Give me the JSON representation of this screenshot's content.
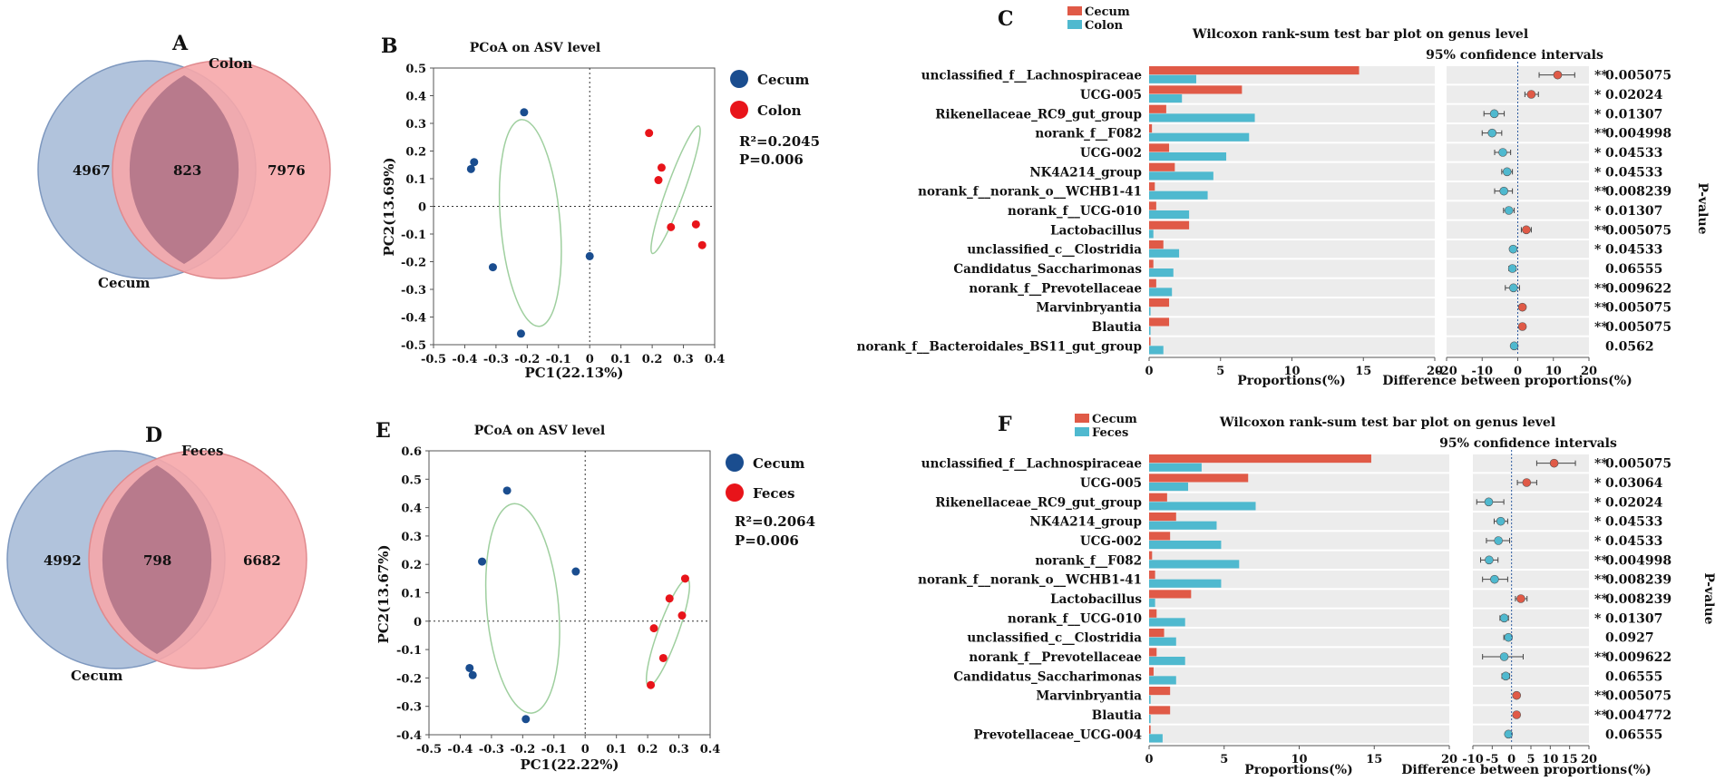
{
  "colors": {
    "cecum": "#e05a47",
    "colon": "#4fb9cf",
    "feces": "#4fb9cf",
    "dot_blue": "#1a4d8f",
    "dot_red": "#e8141a",
    "venn_left": "#a3b8d6",
    "venn_right": "#f6a7aa",
    "venn_overlap": "#b87a8c",
    "ellipse": "#9fcf9f",
    "sig": "#e8141a"
  },
  "panels": {
    "A": {
      "letter": "A",
      "left_label": "Cecum",
      "right_label": "Colon",
      "left_only": "4967",
      "overlap": "823",
      "right_only": "7976"
    },
    "D": {
      "letter": "D",
      "left_label": "Cecum",
      "right_label": "Feces",
      "left_only": "4992",
      "overlap": "798",
      "right_only": "6682"
    },
    "B": {
      "letter": "B",
      "title": "PCoA on ASV level",
      "xlabel": "PC1(22.13%)",
      "ylabel": "PC2(13.69%)",
      "xticks": [
        "-0.5",
        "-0.4",
        "-0.3",
        "-0.2",
        "-0.1",
        "0",
        "0.1",
        "0.2",
        "0.3",
        "0.4"
      ],
      "yticks": [
        "0.5",
        "0.4",
        "0.3",
        "0.2",
        "0.1",
        "0",
        "-0.1",
        "-0.2",
        "-0.3",
        "-0.4",
        "-0.5"
      ],
      "legend": [
        "Cecum",
        "Colon"
      ],
      "r2": "R²=0.2045",
      "p": "P=0.006"
    },
    "E": {
      "letter": "E",
      "title": "PCoA on ASV level",
      "xlabel": "PC1(22.22%)",
      "ylabel": "PC2(13.67%)",
      "xticks": [
        "-0.5",
        "-0.4",
        "-0.3",
        "-0.2",
        "-0.1",
        "0",
        "0.1",
        "0.2",
        "0.3",
        "0.4"
      ],
      "yticks": [
        "0.6",
        "0.5",
        "0.4",
        "0.3",
        "0.2",
        "0.1",
        "0",
        "-0.1",
        "-0.2",
        "-0.3",
        "-0.4"
      ],
      "legend": [
        "Cecum",
        "Feces"
      ],
      "r2": "R²=0.2064",
      "p": "P=0.006"
    },
    "C": {
      "letter": "C",
      "title": "Wilcoxon rank-sum test bar plot on genus level",
      "ci_label": "95% confidence intervals",
      "legend": [
        "Cecum",
        "Colon"
      ],
      "xlabel_left": "Proportions(%)",
      "xlabel_right": "Difference between proportions(%)",
      "pvalue_label": "P-value",
      "xticks_left": [
        "0",
        "5",
        "10",
        "15",
        "20"
      ],
      "xticks_right": [
        "-20",
        "-10",
        "0",
        "10",
        "20"
      ]
    },
    "F": {
      "letter": "F",
      "title": "Wilcoxon rank-sum test bar plot on genus level",
      "ci_label": "95% confidence intervals",
      "legend": [
        "Cecum",
        "Feces"
      ],
      "xlabel_left": "Proportions(%)",
      "xlabel_right": "Difference between proportions(%)",
      "pvalue_label": "P-value",
      "xticks_left": [
        "0",
        "5",
        "10",
        "15",
        "20"
      ],
      "xticks_right": [
        "-10",
        "-5",
        "0",
        "5",
        "10",
        "15",
        "20"
      ]
    }
  },
  "chart_data": [
    {
      "id": "B",
      "type": "scatter",
      "xlim": [
        -0.5,
        0.4
      ],
      "ylim": [
        -0.5,
        0.5
      ],
      "series": [
        {
          "name": "Cecum",
          "points": [
            [
              -0.21,
              0.34
            ],
            [
              -0.37,
              0.16
            ],
            [
              -0.38,
              0.135
            ],
            [
              -0.31,
              -0.22
            ],
            [
              -0.22,
              -0.46
            ],
            [
              0.0,
              -0.18
            ]
          ]
        },
        {
          "name": "Colon",
          "points": [
            [
              0.19,
              0.265
            ],
            [
              0.23,
              0.14
            ],
            [
              0.22,
              0.095
            ],
            [
              0.26,
              -0.075
            ],
            [
              0.34,
              -0.065
            ],
            [
              0.36,
              -0.14
            ]
          ]
        }
      ],
      "ellipses": [
        {
          "cx": -0.19,
          "cy": -0.06,
          "rx": 0.095,
          "ry": 0.375,
          "angle": -5
        },
        {
          "cx": 0.275,
          "cy": 0.06,
          "rx": 0.028,
          "ry": 0.245,
          "angle": 20
        }
      ]
    },
    {
      "id": "E",
      "type": "scatter",
      "xlim": [
        -0.5,
        0.4
      ],
      "ylim": [
        -0.4,
        0.6
      ],
      "series": [
        {
          "name": "Cecum",
          "points": [
            [
              -0.25,
              0.46
            ],
            [
              -0.33,
              0.21
            ],
            [
              -0.03,
              0.175
            ],
            [
              -0.37,
              -0.165
            ],
            [
              -0.36,
              -0.19
            ],
            [
              -0.19,
              -0.345
            ]
          ]
        },
        {
          "name": "Feces",
          "points": [
            [
              0.32,
              0.15
            ],
            [
              0.27,
              0.08
            ],
            [
              0.31,
              0.02
            ],
            [
              0.22,
              -0.025
            ],
            [
              0.25,
              -0.13
            ],
            [
              0.21,
              -0.225
            ]
          ]
        }
      ],
      "ellipses": [
        {
          "cx": -0.2,
          "cy": 0.045,
          "rx": 0.115,
          "ry": 0.37,
          "angle": -5
        },
        {
          "cx": 0.265,
          "cy": -0.04,
          "rx": 0.032,
          "ry": 0.2,
          "angle": 20
        }
      ]
    },
    {
      "id": "C",
      "type": "bar",
      "xlim_left": [
        0,
        20
      ],
      "xlim_right": [
        -20,
        20
      ],
      "categories": [
        "unclassified_f__Lachnospiraceae",
        "UCG-005",
        "Rikenellaceae_RC9_gut_group",
        "norank_f__F082",
        "UCG-002",
        "NK4A214_group",
        "norank_f__norank_o__WCHB1-41",
        "norank_f__UCG-010",
        "Lactobacillus",
        "unclassified_c__Clostridia",
        "Candidatus_Saccharimonas",
        "norank_f__Prevotellaceae",
        "Marvinbryantia",
        "Blautia",
        "norank_f__Bacteroidales_BS11_gut_group"
      ],
      "series": [
        {
          "name": "Cecum",
          "values": [
            14.7,
            6.5,
            1.2,
            0.2,
            1.4,
            1.8,
            0.4,
            0.5,
            2.8,
            1.0,
            0.3,
            0.5,
            1.4,
            1.4,
            0.1
          ]
        },
        {
          "name": "Colon",
          "values": [
            3.3,
            2.3,
            7.4,
            7.0,
            5.4,
            4.5,
            4.1,
            2.8,
            0.3,
            2.1,
            1.7,
            1.6,
            0.1,
            0.1,
            1.0
          ]
        }
      ],
      "difference": [
        11.2,
        3.8,
        -6.6,
        -7.2,
        -4.2,
        -3.0,
        -3.9,
        -2.5,
        2.4,
        -1.3,
        -1.5,
        -1.2,
        1.3,
        1.3,
        -1.0
      ],
      "ci_low": [
        6.0,
        2.0,
        -9.5,
        -10.0,
        -6.5,
        -4.5,
        -6.5,
        -4.0,
        1.0,
        -2.0,
        -2.5,
        -3.5,
        0.8,
        0.8,
        -1.8
      ],
      "ci_high": [
        16.0,
        5.8,
        -3.8,
        -4.5,
        -2.0,
        -1.5,
        -1.5,
        -1.0,
        3.8,
        -0.6,
        -0.5,
        0.5,
        1.8,
        1.8,
        -0.3
      ],
      "significance": [
        "**",
        "*",
        "*",
        "**",
        "*",
        "*",
        "**",
        "*",
        "**",
        "*",
        "",
        "**",
        "**",
        "**",
        ""
      ],
      "pvalues": [
        "0.005075",
        "0.02024",
        "0.01307",
        "0.004998",
        "0.04533",
        "0.04533",
        "0.008239",
        "0.01307",
        "0.005075",
        "0.04533",
        "0.06555",
        "0.009622",
        "0.005075",
        "0.005075",
        "0.0562"
      ]
    },
    {
      "id": "F",
      "type": "bar",
      "xlim_left": [
        0,
        20
      ],
      "xlim_right": [
        -10,
        20
      ],
      "categories": [
        "unclassified_f__Lachnospiraceae",
        "UCG-005",
        "Rikenellaceae_RC9_gut_group",
        "NK4A214_group",
        "UCG-002",
        "norank_f__F082",
        "norank_f__norank_o__WCHB1-41",
        "Lactobacillus",
        "norank_f__UCG-010",
        "unclassified_c__Clostridia",
        "norank_f__Prevotellaceae",
        "Candidatus_Saccharimonas",
        "Marvinbryantia",
        "Blautia",
        "Prevotellaceae_UCG-004"
      ],
      "series": [
        {
          "name": "Cecum",
          "values": [
            14.8,
            6.6,
            1.2,
            1.8,
            1.4,
            0.2,
            0.4,
            2.8,
            0.5,
            1.0,
            0.5,
            0.3,
            1.4,
            1.4,
            0.1
          ]
        },
        {
          "name": "Feces",
          "values": [
            3.5,
            2.6,
            7.1,
            4.5,
            4.8,
            6.0,
            4.8,
            0.4,
            2.4,
            1.8,
            2.4,
            1.8,
            0.1,
            0.1,
            0.9
          ]
        }
      ],
      "difference": [
        11.0,
        3.9,
        -5.9,
        -2.8,
        -3.4,
        -5.8,
        -4.4,
        2.4,
        -1.9,
        -0.8,
        -1.9,
        -1.5,
        1.3,
        1.3,
        -0.8
      ],
      "ci_low": [
        6.5,
        1.5,
        -9.0,
        -4.5,
        -6.5,
        -8.0,
        -7.5,
        1.0,
        -3.0,
        -2.0,
        -7.5,
        -2.5,
        0.8,
        0.8,
        -1.3
      ],
      "ci_high": [
        16.5,
        6.5,
        -2.0,
        -1.0,
        -0.5,
        -3.5,
        -1.0,
        4.0,
        -0.8,
        0.0,
        3.0,
        -0.5,
        1.8,
        1.8,
        -0.3
      ],
      "significance": [
        "**",
        "*",
        "*",
        "*",
        "*",
        "**",
        "**",
        "**",
        "*",
        "",
        "**",
        "",
        "**",
        "**",
        ""
      ],
      "pvalues": [
        "0.005075",
        "0.03064",
        "0.02024",
        "0.04533",
        "0.04533",
        "0.004998",
        "0.008239",
        "0.008239",
        "0.01307",
        "0.0927",
        "0.009622",
        "0.06555",
        "0.005075",
        "0.004772",
        "0.06555"
      ]
    }
  ]
}
